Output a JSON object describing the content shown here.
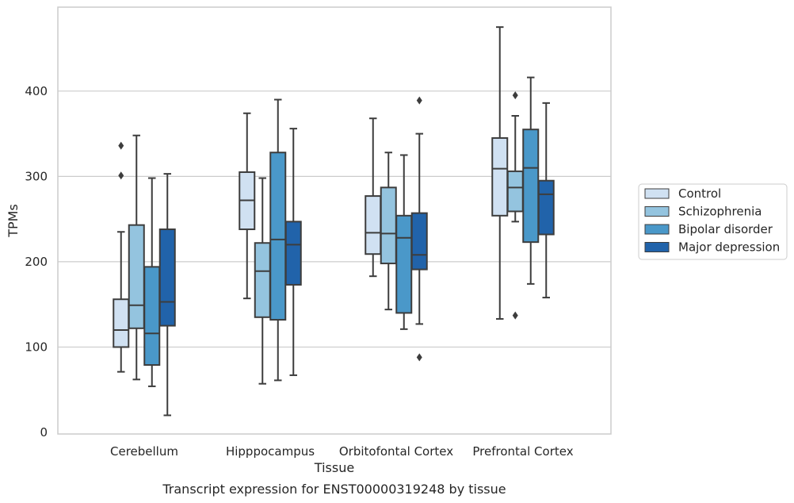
{
  "chart_data": {
    "type": "boxplot",
    "title": "",
    "caption": "Transcript expression for ENST00000319248 by tissue",
    "xlabel": "Tissue",
    "ylabel": "TPMs",
    "ylim": [
      0,
      500
    ],
    "yticks": [
      0,
      100,
      200,
      300,
      400
    ],
    "grid": "horizontal",
    "legend_position": "right",
    "categories": [
      "Cerebellum",
      "Hipppocampus",
      "Orbitofontal Cortex",
      "Prefrontal Cortex"
    ],
    "series": [
      {
        "name": "Control",
        "color": "#d0e1f2",
        "boxes": [
          {
            "whisker_low": 71,
            "q1": 100,
            "median": 120,
            "q3": 156,
            "whisker_high": 235,
            "outliers": [
              301,
              336
            ]
          },
          {
            "whisker_low": 157,
            "q1": 238,
            "median": 272,
            "q3": 305,
            "whisker_high": 374,
            "outliers": []
          },
          {
            "whisker_low": 183,
            "q1": 209,
            "median": 234,
            "q3": 277,
            "whisker_high": 368,
            "outliers": []
          },
          {
            "whisker_low": 133,
            "q1": 254,
            "median": 309,
            "q3": 345,
            "whisker_high": 475,
            "outliers": []
          }
        ]
      },
      {
        "name": "Schizophrenia",
        "color": "#94c4df",
        "boxes": [
          {
            "whisker_low": 62,
            "q1": 122,
            "median": 149,
            "q3": 243,
            "whisker_high": 348,
            "outliers": []
          },
          {
            "whisker_low": 57,
            "q1": 135,
            "median": 189,
            "q3": 222,
            "whisker_high": 298,
            "outliers": []
          },
          {
            "whisker_low": 144,
            "q1": 198,
            "median": 233,
            "q3": 287,
            "whisker_high": 328,
            "outliers": []
          },
          {
            "whisker_low": 247,
            "q1": 259,
            "median": 287,
            "q3": 306,
            "whisker_high": 371,
            "outliers": [
              137,
              395
            ]
          }
        ]
      },
      {
        "name": "Bipolar disorder",
        "color": "#4a98c9",
        "boxes": [
          {
            "whisker_low": 54,
            "q1": 79,
            "median": 116,
            "q3": 194,
            "whisker_high": 298,
            "outliers": []
          },
          {
            "whisker_low": 61,
            "q1": 132,
            "median": 226,
            "q3": 328,
            "whisker_high": 390,
            "outliers": []
          },
          {
            "whisker_low": 121,
            "q1": 140,
            "median": 228,
            "q3": 254,
            "whisker_high": 325,
            "outliers": []
          },
          {
            "whisker_low": 174,
            "q1": 223,
            "median": 310,
            "q3": 355,
            "whisker_high": 416,
            "outliers": []
          }
        ]
      },
      {
        "name": "Major depression",
        "color": "#2163aa",
        "boxes": [
          {
            "whisker_low": 20,
            "q1": 125,
            "median": 153,
            "q3": 238,
            "whisker_high": 303,
            "outliers": []
          },
          {
            "whisker_low": 67,
            "q1": 173,
            "median": 220,
            "q3": 247,
            "whisker_high": 356,
            "outliers": []
          },
          {
            "whisker_low": 127,
            "q1": 191,
            "median": 208,
            "q3": 257,
            "whisker_high": 350,
            "outliers": [
              88,
              389
            ]
          },
          {
            "whisker_low": 158,
            "q1": 232,
            "median": 279,
            "q3": 295,
            "whisker_high": 386,
            "outliers": []
          }
        ]
      }
    ]
  }
}
